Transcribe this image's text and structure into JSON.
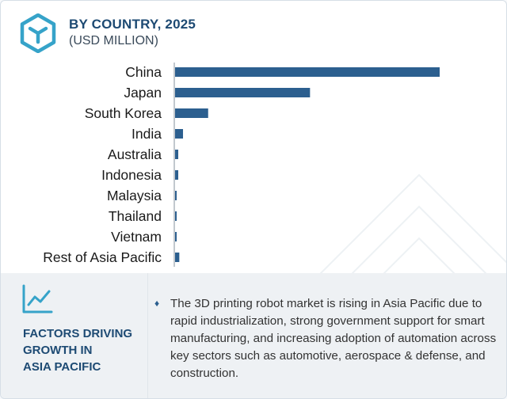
{
  "header": {
    "title": "BY COUNTRY, 2025",
    "subtitle": "(USD MILLION)",
    "logo_icon": "cube-logo-icon"
  },
  "colors": {
    "bar": "#2c5f8f",
    "title": "#1d4a73",
    "panel_bg": "#eef1f4"
  },
  "chart_data": {
    "type": "bar",
    "orientation": "horizontal",
    "title": "BY COUNTRY, 2025",
    "subtitle": "(USD MILLION)",
    "xlabel": "",
    "ylabel": "",
    "grid": false,
    "categories": [
      "China",
      "Japan",
      "South Korea",
      "India",
      "Australia",
      "Indonesia",
      "Malaysia",
      "Thailand",
      "Vietnam",
      "Rest of Asia Pacific"
    ],
    "values": [
      100,
      51,
      12.5,
      3,
      1.2,
      1.2,
      0.4,
      0.6,
      0.3,
      1.6
    ]
  },
  "factors": {
    "icon": "trend-line-icon",
    "title": "FACTORS DRIVING\nGROWTH IN\nASIA PACIFIC",
    "bullet": "♦",
    "text": "The 3D printing robot market is rising in Asia Pacific due to rapid industrialization, strong government support for smart manufacturing, and increasing adoption of automation across key sectors such as automotive, aerospace & defense, and construction."
  }
}
